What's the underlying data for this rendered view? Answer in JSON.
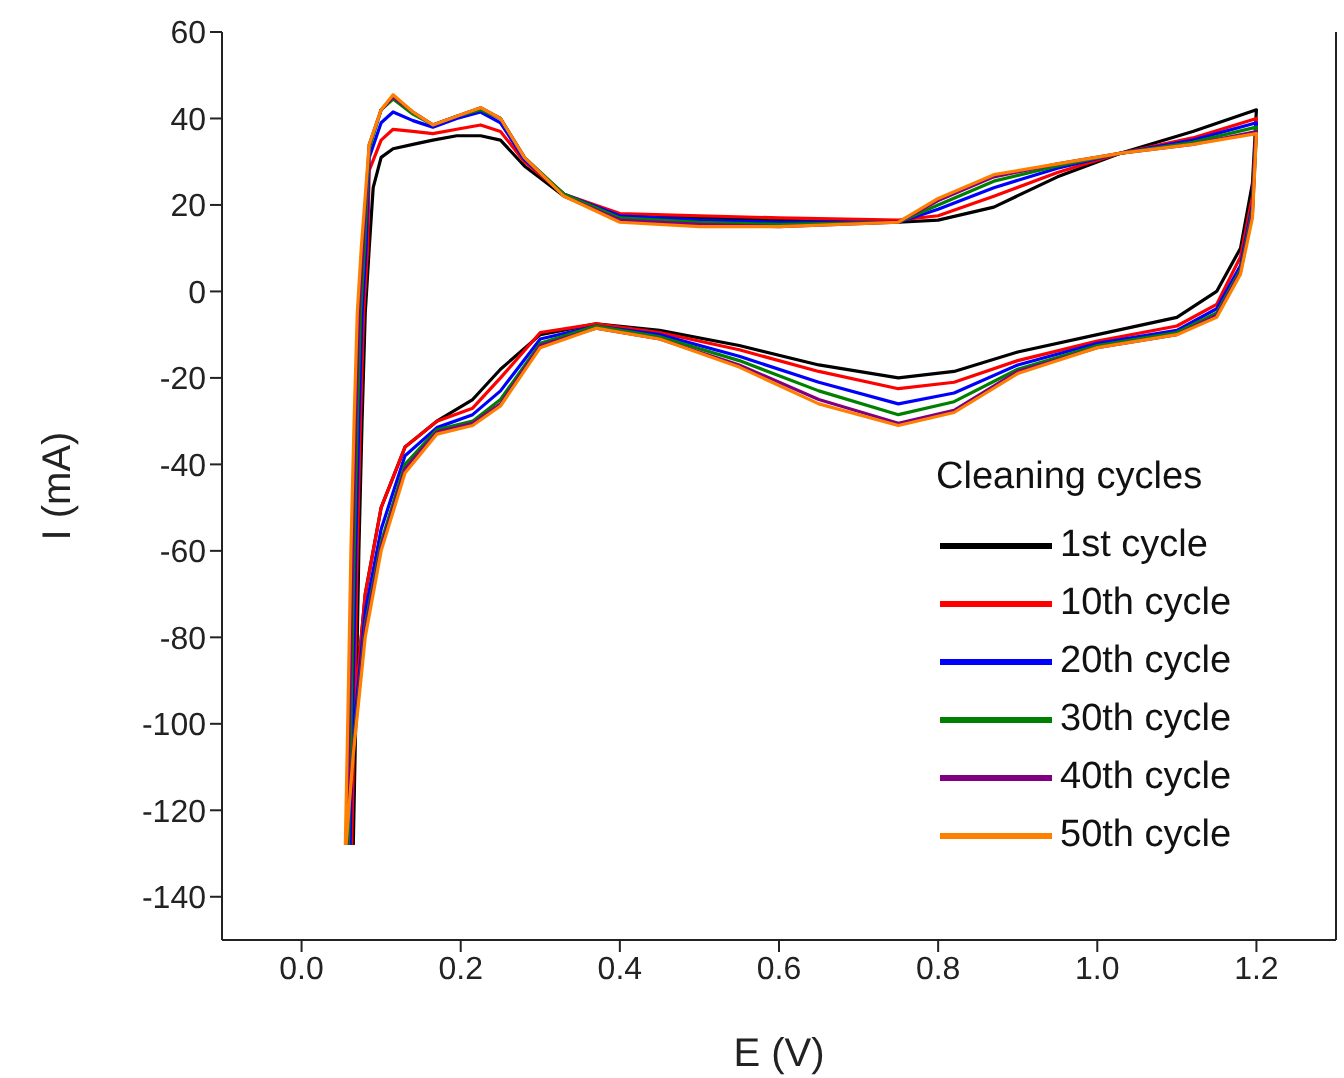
{
  "chart_data": {
    "type": "line",
    "xlabel": "E (V)",
    "ylabel": "I (mA)",
    "legend_title": "Cleaning cycles",
    "legend": "bottom right",
    "marker": "none",
    "line_style": "solid",
    "grid": false,
    "xlim": [
      -0.1,
      1.3
    ],
    "xticks": [
      {
        "value": 0,
        "label": "0.0"
      },
      0.2,
      0.4,
      0.6,
      0.8,
      {
        "value": 1,
        "label": "1.0"
      },
      1.2
    ],
    "ylim": [
      -150,
      60
    ],
    "yticks": [
      -140,
      -120,
      -100,
      -80,
      -60,
      -40,
      -20,
      0,
      20,
      40,
      60
    ],
    "series": [
      {
        "name": "1st cycle",
        "color": "#000000",
        "x": [
          0.065,
          0.068,
          0.072,
          0.076,
          0.08,
          0.085,
          0.09,
          0.1,
          0.115,
          0.14,
          0.165,
          0.195,
          0.225,
          0.25,
          0.28,
          0.33,
          0.4,
          0.5,
          0.6,
          0.75,
          0.8,
          0.87,
          0.95,
          1.03,
          1.12,
          1.2,
          1.195,
          1.18,
          1.15,
          1.1,
          1.0,
          0.9,
          0.82,
          0.75,
          0.65,
          0.55,
          0.45,
          0.37,
          0.3,
          0.25,
          0.215,
          0.17,
          0.13,
          0.1,
          0.08,
          0.065,
          0.056
        ],
        "values": [
          -128,
          -100,
          -60,
          -30,
          -5,
          10,
          24,
          31,
          33,
          34,
          35,
          36,
          36,
          35,
          29,
          22,
          17.5,
          17,
          16.5,
          16,
          16.5,
          19.5,
          26.5,
          32,
          37,
          42,
          25,
          10,
          0,
          -6,
          -10,
          -14,
          -18.5,
          -20,
          -17,
          -12.5,
          -9,
          -7.5,
          -10,
          -18,
          -25,
          -30,
          -36,
          -50,
          -70,
          -100,
          -127
        ]
      },
      {
        "name": "10th cycle",
        "color": "#ff0000",
        "x": [
          0.063,
          0.066,
          0.07,
          0.074,
          0.078,
          0.083,
          0.085,
          0.1,
          0.115,
          0.14,
          0.165,
          0.195,
          0.225,
          0.25,
          0.28,
          0.33,
          0.4,
          0.5,
          0.6,
          0.75,
          0.8,
          0.87,
          0.95,
          1.03,
          1.12,
          1.2,
          1.195,
          1.18,
          1.15,
          1.1,
          1.0,
          0.9,
          0.82,
          0.75,
          0.65,
          0.55,
          0.45,
          0.37,
          0.3,
          0.25,
          0.215,
          0.17,
          0.13,
          0.1,
          0.08,
          0.065,
          0.056
        ],
        "values": [
          -128,
          -100,
          -60,
          -30,
          -5,
          10,
          28,
          35,
          37.5,
          37,
          36.5,
          37.5,
          38.5,
          37,
          30,
          22.5,
          18,
          17.5,
          17,
          16.5,
          17.5,
          22,
          27.5,
          32,
          35.5,
          40,
          22,
          8,
          -3,
          -8,
          -11.5,
          -16,
          -21,
          -22.5,
          -18.5,
          -13.5,
          -9.5,
          -7.5,
          -9.5,
          -20,
          -27,
          -30,
          -36,
          -50,
          -70,
          -100,
          -127
        ]
      },
      {
        "name": "20th cycle",
        "color": "#0000ff",
        "x": [
          0.061,
          0.064,
          0.068,
          0.072,
          0.076,
          0.081,
          0.085,
          0.1,
          0.115,
          0.14,
          0.165,
          0.195,
          0.225,
          0.25,
          0.28,
          0.33,
          0.4,
          0.5,
          0.6,
          0.75,
          0.8,
          0.87,
          0.95,
          1.03,
          1.12,
          1.2,
          1.195,
          1.18,
          1.15,
          1.1,
          1.0,
          0.9,
          0.82,
          0.75,
          0.65,
          0.55,
          0.45,
          0.37,
          0.3,
          0.25,
          0.215,
          0.17,
          0.13,
          0.1,
          0.08,
          0.065,
          0.056
        ],
        "values": [
          -128,
          -100,
          -60,
          -30,
          -5,
          10,
          31,
          39,
          41.5,
          39.5,
          38,
          40,
          41.5,
          39,
          30.5,
          22.5,
          17.5,
          16.5,
          16,
          16,
          19,
          24,
          28.5,
          32,
          35,
          39,
          20,
          6,
          -4,
          -9,
          -12,
          -17,
          -23.5,
          -26,
          -21,
          -15,
          -10,
          -8,
          -11,
          -23,
          -28.5,
          -31.5,
          -38,
          -55,
          -74,
          -103,
          -128
        ]
      },
      {
        "name": "30th cycle",
        "color": "#008000",
        "x": [
          0.059,
          0.062,
          0.066,
          0.07,
          0.074,
          0.079,
          0.085,
          0.1,
          0.115,
          0.14,
          0.165,
          0.195,
          0.225,
          0.25,
          0.28,
          0.33,
          0.4,
          0.5,
          0.6,
          0.75,
          0.8,
          0.87,
          0.95,
          1.03,
          1.12,
          1.2,
          1.195,
          1.18,
          1.15,
          1.1,
          1.0,
          0.9,
          0.82,
          0.75,
          0.65,
          0.55,
          0.45,
          0.37,
          0.3,
          0.25,
          0.215,
          0.17,
          0.13,
          0.1,
          0.08,
          0.065,
          0.056
        ],
        "values": [
          -128,
          -100,
          -60,
          -30,
          -5,
          10,
          33,
          42,
          44.5,
          41,
          38.5,
          40.5,
          42,
          40,
          31,
          22.5,
          17,
          16,
          15.5,
          16,
          20,
          25.5,
          29,
          32,
          34.5,
          38,
          19,
          5,
          -5,
          -9.5,
          -12.5,
          -18,
          -25.5,
          -28.5,
          -23,
          -16,
          -10.5,
          -8,
          -12,
          -25,
          -30,
          -32,
          -40,
          -58,
          -77,
          -105,
          -128
        ]
      },
      {
        "name": "40th cycle",
        "color": "#800080",
        "x": [
          0.057,
          0.06,
          0.064,
          0.068,
          0.072,
          0.077,
          0.085,
          0.1,
          0.115,
          0.14,
          0.165,
          0.195,
          0.225,
          0.25,
          0.28,
          0.33,
          0.4,
          0.5,
          0.6,
          0.75,
          0.8,
          0.87,
          0.95,
          1.03,
          1.12,
          1.2,
          1.195,
          1.18,
          1.15,
          1.1,
          1.0,
          0.9,
          0.82,
          0.75,
          0.65,
          0.55,
          0.45,
          0.37,
          0.3,
          0.25,
          0.215,
          0.17,
          0.13,
          0.1,
          0.08,
          0.065,
          0.056
        ],
        "values": [
          -128,
          -100,
          -60,
          -30,
          -5,
          10,
          34,
          42,
          45,
          41.5,
          38.5,
          40.5,
          42.5,
          40,
          31,
          22,
          16.5,
          15.5,
          15,
          16,
          21,
          26.5,
          29.5,
          32,
          34,
          37,
          18,
          4.5,
          -5.5,
          -10,
          -13,
          -18.5,
          -27.5,
          -30.5,
          -25,
          -17,
          -11,
          -8.5,
          -12.5,
          -26,
          -30.5,
          -32.5,
          -41,
          -59,
          -78,
          -106,
          -128
        ]
      },
      {
        "name": "50th cycle",
        "color": "#ff8000",
        "x": [
          0.055,
          0.058,
          0.062,
          0.066,
          0.07,
          0.075,
          0.085,
          0.1,
          0.115,
          0.14,
          0.165,
          0.195,
          0.225,
          0.25,
          0.28,
          0.33,
          0.4,
          0.5,
          0.6,
          0.75,
          0.8,
          0.87,
          0.95,
          1.03,
          1.12,
          1.2,
          1.195,
          1.18,
          1.15,
          1.1,
          1.0,
          0.9,
          0.82,
          0.75,
          0.65,
          0.55,
          0.45,
          0.37,
          0.3,
          0.25,
          0.215,
          0.17,
          0.13,
          0.1,
          0.08,
          0.065,
          0.056
        ],
        "values": [
          -128,
          -100,
          -60,
          -30,
          -5,
          10,
          34,
          42,
          45.5,
          41.5,
          38.5,
          40.5,
          42.5,
          40,
          31,
          22,
          16,
          15,
          15,
          16,
          21.5,
          27,
          29.5,
          32,
          34,
          36.5,
          17,
          4,
          -6,
          -10,
          -13,
          -19,
          -28,
          -31,
          -26,
          -17.5,
          -11,
          -8.5,
          -13,
          -26.5,
          -31,
          -33,
          -42,
          -60,
          -80,
          -107,
          -128
        ]
      }
    ]
  }
}
